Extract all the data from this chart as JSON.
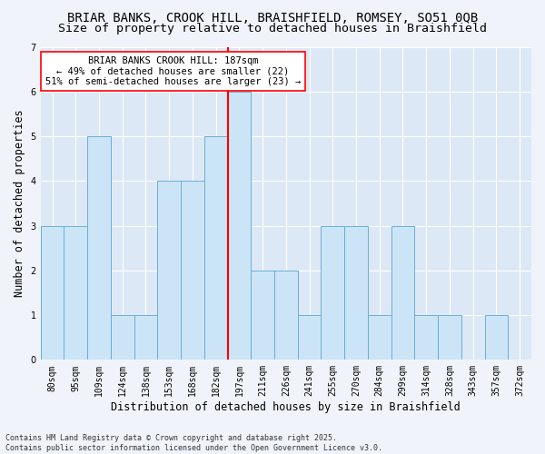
{
  "title_line1": "BRIAR BANKS, CROOK HILL, BRAISHFIELD, ROMSEY, SO51 0QB",
  "title_line2": "Size of property relative to detached houses in Braishfield",
  "xlabel": "Distribution of detached houses by size in Braishfield",
  "ylabel": "Number of detached properties",
  "categories": [
    "80sqm",
    "95sqm",
    "109sqm",
    "124sqm",
    "138sqm",
    "153sqm",
    "168sqm",
    "182sqm",
    "197sqm",
    "211sqm",
    "226sqm",
    "241sqm",
    "255sqm",
    "270sqm",
    "284sqm",
    "299sqm",
    "314sqm",
    "328sqm",
    "343sqm",
    "357sqm",
    "372sqm"
  ],
  "values": [
    3,
    3,
    5,
    1,
    1,
    4,
    4,
    5,
    6,
    2,
    2,
    1,
    3,
    3,
    1,
    3,
    1,
    1,
    0,
    1,
    0
  ],
  "bar_color": "#cce5f6",
  "bar_edge_color": "#6aaed6",
  "red_line_index": 7,
  "annotation_title": "BRIAR BANKS CROOK HILL: 187sqm",
  "annotation_line2": "← 49% of detached houses are smaller (22)",
  "annotation_line3": "51% of semi-detached houses are larger (23) →",
  "ylim": [
    0,
    7
  ],
  "yticks": [
    0,
    1,
    2,
    3,
    4,
    5,
    6,
    7
  ],
  "fig_bg_color": "#f0f4fa",
  "plot_bg_color": "#dce8f5",
  "grid_color": "#ffffff",
  "footer_line1": "Contains HM Land Registry data © Crown copyright and database right 2025.",
  "footer_line2": "Contains public sector information licensed under the Open Government Licence v3.0.",
  "title_fontsize": 10,
  "subtitle_fontsize": 9.5,
  "axis_label_fontsize": 8.5,
  "tick_fontsize": 7,
  "annotation_fontsize": 7.5,
  "footer_fontsize": 6
}
